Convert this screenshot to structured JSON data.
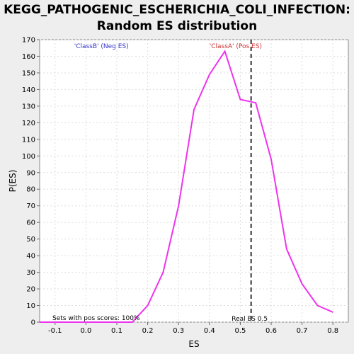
{
  "title_line1": "KEGG_PATHOGENIC_ESCHERICHIA_COLI_INFECTION:",
  "title_line2": "Random ES distribution",
  "chart_data": {
    "type": "line",
    "xlabel": "ES",
    "ylabel": "P(ES)",
    "xlim": [
      -0.15,
      0.85
    ],
    "ylim": [
      0,
      170
    ],
    "xticks": [
      "-0.1",
      "0.0",
      "0.1",
      "0.2",
      "0.3",
      "0.4",
      "0.5",
      "0.6",
      "0.7",
      "0.8"
    ],
    "xtick_values": [
      -0.1,
      0.0,
      0.1,
      0.2,
      0.3,
      0.4,
      0.5,
      0.6,
      0.7,
      0.8
    ],
    "yticks": [
      0,
      10,
      20,
      30,
      40,
      50,
      60,
      70,
      80,
      90,
      100,
      110,
      120,
      130,
      140,
      150,
      160,
      170
    ],
    "grid": true,
    "series": [
      {
        "color": "#ee33ee",
        "x": [
          -0.15,
          -0.1,
          -0.05,
          0.0,
          0.05,
          0.1,
          0.15,
          0.2,
          0.25,
          0.3,
          0.35,
          0.4,
          0.45,
          0.5,
          0.55,
          0.6,
          0.65,
          0.7,
          0.75,
          0.8
        ],
        "y": [
          0,
          0,
          0,
          0,
          0,
          0,
          0,
          10,
          30,
          70,
          128,
          149,
          163,
          134,
          132,
          98,
          44,
          23,
          10,
          6
        ]
      }
    ],
    "real_es": {
      "value": 0.535,
      "label": "Real ES 0.5",
      "color": "#333333"
    },
    "annotations": {
      "classB": {
        "text": "'ClassB' (Neg ES)",
        "color": "#3333cc"
      },
      "classA": {
        "text": "'ClassA' (Pos ES)",
        "color": "#cc3333"
      },
      "pos_scores": {
        "text": "Sets with pos scores: 100%",
        "color": "#000000"
      }
    }
  }
}
